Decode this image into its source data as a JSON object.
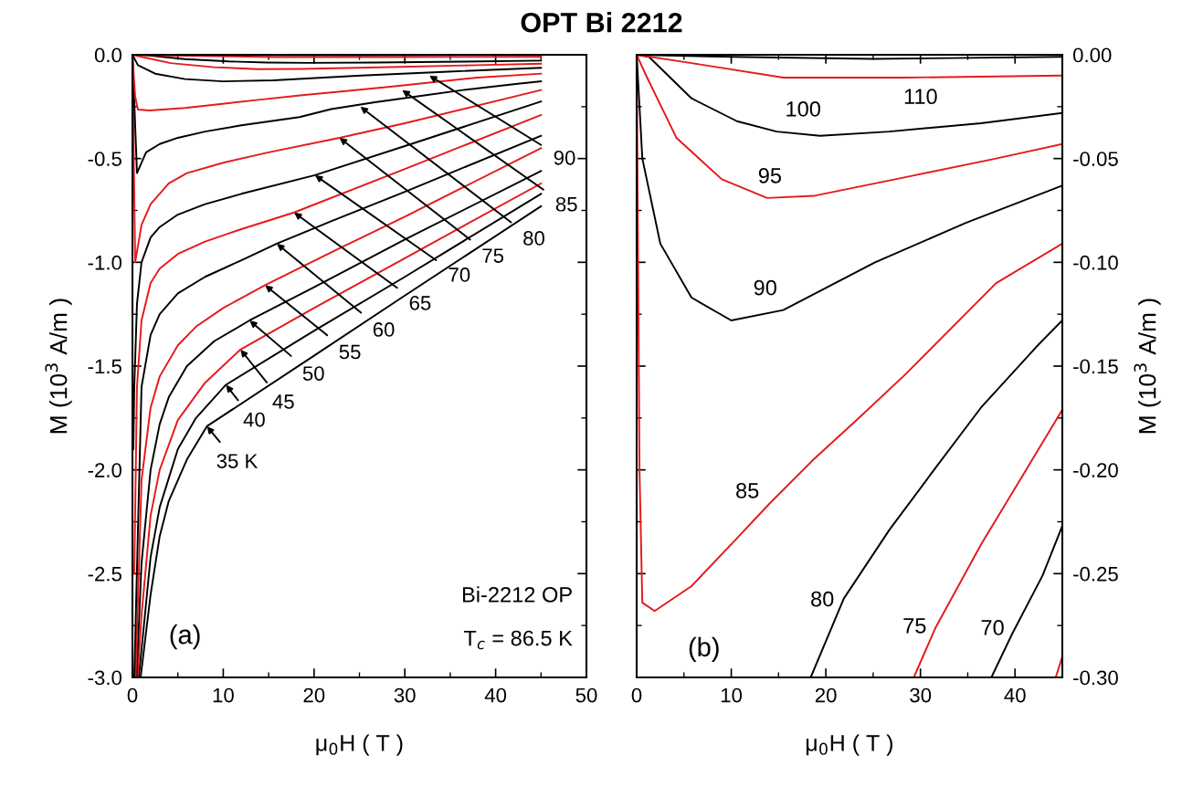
{
  "chart_data": [
    {
      "type": "line",
      "title": "OPT Bi 2212",
      "xlabel": "μ$_{0}$H ( T )",
      "ylabel": "M (10$^{3}$ A/m )",
      "xlim": [
        0,
        50
      ],
      "xticks": [
        0,
        10,
        20,
        30,
        40,
        50
      ],
      "ylim": [
        -3.0,
        0.0
      ],
      "yticks": [
        {
          "value": -3.0,
          "label": "-3.0"
        },
        -2.5,
        {
          "value": -2.0,
          "label": "-2.0"
        },
        -1.5,
        {
          "value": -1.0,
          "label": "-1.0"
        },
        -0.5,
        {
          "value": 0.0,
          "label": "0.0"
        }
      ],
      "series": [
        {
          "color": "#000000",
          "x": [
            0.9,
            2,
            3,
            4,
            6,
            8.2,
            20,
            30,
            45
          ],
          "values": [
            -3.0,
            -2.6,
            -2.32,
            -2.15,
            -1.95,
            -1.79,
            -1.45,
            -1.16,
            -0.73
          ]
        },
        {
          "color": "#000000",
          "x": [
            0.7,
            2,
            3,
            5,
            7,
            10.3,
            20,
            30,
            45
          ],
          "values": [
            -3.0,
            -2.42,
            -2.18,
            -1.9,
            -1.75,
            -1.59,
            -1.33,
            -1.07,
            -0.67
          ]
        },
        {
          "color": "#e41a1c",
          "x": [
            0.55,
            1,
            2,
            3,
            5,
            8,
            11.9,
            20,
            30,
            45
          ],
          "values": [
            -3.0,
            -2.7,
            -2.22,
            -2.0,
            -1.76,
            -1.58,
            -1.42,
            -1.22,
            -0.98,
            -0.62
          ]
        },
        {
          "color": "#000000",
          "x": [
            0.45,
            1,
            2,
            3,
            4,
            6,
            9,
            12.9,
            20,
            30,
            45
          ],
          "values": [
            -3.0,
            -2.45,
            -2.0,
            -1.78,
            -1.65,
            -1.5,
            -1.38,
            -1.28,
            -1.12,
            -0.89,
            -0.56
          ]
        },
        {
          "color": "#e41a1c",
          "x": [
            0.35,
            1,
            2,
            3,
            5,
            7,
            10,
            14.6,
            22,
            30,
            45
          ],
          "values": [
            -3.0,
            -2.05,
            -1.7,
            -1.55,
            -1.4,
            -1.31,
            -1.22,
            -1.11,
            -0.95,
            -0.78,
            -0.45
          ]
        },
        {
          "color": "#000000",
          "x": [
            0.2,
            1,
            2,
            3,
            5,
            8,
            12,
            15.9,
            22,
            30,
            45
          ],
          "values": [
            -3.0,
            -1.6,
            -1.35,
            -1.25,
            -1.15,
            -1.07,
            -0.99,
            -0.91,
            -0.8,
            -0.66,
            -0.39
          ]
        },
        {
          "color": "#e41a1c",
          "x": [
            0.2,
            0.5,
            1,
            2,
            3,
            5,
            8,
            12,
            17.8,
            30,
            45
          ],
          "values": [
            -2.5,
            -1.6,
            -1.28,
            -1.1,
            -1.03,
            -0.96,
            -0.9,
            -0.84,
            -0.76,
            -0.55,
            -0.29
          ]
        },
        {
          "color": "#000000",
          "x": [
            0.1,
            0.2,
            0.5,
            1,
            2,
            3,
            5,
            8,
            12,
            20.1,
            30,
            45
          ],
          "values": [
            -1.9,
            -1.6,
            -1.2,
            -1.0,
            -0.88,
            -0.83,
            -0.77,
            -0.72,
            -0.67,
            -0.58,
            -0.44,
            -0.225
          ]
        },
        {
          "color": "#e41a1c",
          "x": [
            0,
            0.3,
            1,
            2,
            4,
            6,
            10,
            15,
            22.8,
            30,
            45
          ],
          "values": [
            0,
            -1.0,
            -0.82,
            -0.72,
            -0.62,
            -0.57,
            -0.52,
            -0.47,
            -0.4,
            -0.33,
            -0.17
          ]
        },
        {
          "color": "#000000",
          "x": [
            0,
            0.5,
            1.5,
            3,
            5,
            8,
            12,
            18.4,
            21.9,
            26.7,
            31.6,
            36.4,
            42.2,
            45
          ],
          "values": [
            0,
            -0.57,
            -0.47,
            -0.43,
            -0.4,
            -0.37,
            -0.34,
            -0.3,
            -0.262,
            -0.229,
            -0.199,
            -0.17,
            -0.141,
            -0.128
          ]
        },
        {
          "color": "#e41a1c",
          "x": [
            0,
            0.3,
            0.6,
            1.9,
            5.8,
            10.6,
            14.1,
            18.7,
            23.5,
            28.4,
            38,
            45
          ],
          "values": [
            0,
            -0.2,
            -0.264,
            -0.268,
            -0.256,
            -0.233,
            -0.216,
            -0.195,
            -0.175,
            -0.154,
            -0.11,
            -0.091
          ]
        },
        {
          "color": "#000000",
          "x": [
            0,
            0.6,
            2.5,
            5.8,
            10,
            15.5,
            25.2,
            34.8,
            45
          ],
          "values": [
            0,
            -0.05,
            -0.091,
            -0.117,
            -0.128,
            -0.123,
            -0.1,
            -0.081,
            -0.063
          ]
        },
        {
          "color": "#e41a1c",
          "x": [
            0,
            1.0,
            4.2,
            9,
            13.8,
            18.7,
            28.4,
            38,
            45
          ],
          "values": [
            0,
            -0.01,
            -0.04,
            -0.06,
            -0.069,
            -0.068,
            -0.059,
            -0.05,
            -0.043
          ]
        },
        {
          "color": "#000000",
          "x": [
            0,
            1.3,
            5.8,
            10.6,
            14.8,
            19.4,
            26.7,
            36.4,
            45
          ],
          "values": [
            0,
            -0.001,
            -0.021,
            -0.032,
            -0.037,
            -0.039,
            -0.037,
            -0.033,
            -0.028
          ]
        },
        {
          "color": "#e41a1c",
          "x": [
            0,
            5.8,
            15.5,
            28.4,
            45
          ],
          "values": [
            0,
            -0.004,
            -0.011,
            -0.011,
            -0.01
          ]
        },
        {
          "color": "#000000",
          "x": [
            0,
            10,
            25,
            45
          ],
          "values": [
            0,
            -0.001,
            -0.002,
            -0.001
          ]
        }
      ],
      "annotations": [
        {
          "text": "35 K",
          "x": 8.2,
          "y": -1.79
        },
        {
          "text": "40",
          "x": 10.3,
          "y": -1.59
        },
        {
          "text": "45",
          "x": 11.9,
          "y": -1.42
        },
        {
          "text": "50",
          "x": 12.9,
          "y": -1.28
        },
        {
          "text": "55",
          "x": 14.6,
          "y": -1.11
        },
        {
          "text": "60",
          "x": 15.9,
          "y": -0.91
        },
        {
          "text": "65",
          "x": 17.8,
          "y": -0.76
        },
        {
          "text": "70",
          "x": 20.1,
          "y": -0.58
        },
        {
          "text": "75",
          "x": 22.8,
          "y": -0.4
        },
        {
          "text": "80",
          "x": 25.1,
          "y": -0.25
        },
        {
          "text": "85",
          "x": 29.7,
          "y": -0.17
        },
        {
          "text": "90",
          "x": 32.7,
          "y": -0.1
        },
        "(a)",
        "Bi-2212 OP",
        "T$_{c}$ = 86.5 K"
      ]
    },
    {
      "type": "line",
      "xlabel": "μ$_{0}$H ( T )",
      "ylabel": "M (10$^{3}$ A/m )",
      "xlim": [
        0,
        45
      ],
      "xticks": [
        0,
        10,
        20,
        30,
        40
      ],
      "ylim": [
        -0.3,
        0.0
      ],
      "yticks": [
        {
          "value": -0.3,
          "label": "-0.30"
        },
        -0.25,
        {
          "value": -0.2,
          "label": "-0.20"
        },
        -0.15,
        {
          "value": -0.1,
          "label": "-0.10"
        },
        -0.05,
        {
          "value": 0.0,
          "label": "0.00"
        }
      ],
      "series": [
        {
          "color": "#e41a1c",
          "x": [
            44.3,
            45
          ],
          "values": [
            -0.3,
            -0.29
          ]
        },
        {
          "color": "#000000",
          "x": [
            37.5,
            39.7,
            42.9,
            45
          ],
          "values": [
            -0.3,
            -0.279,
            -0.251,
            -0.227
          ]
        },
        {
          "color": "#e41a1c",
          "x": [
            29.3,
            31.6,
            36.4,
            41.3,
            45
          ],
          "values": [
            -0.3,
            -0.276,
            -0.236,
            -0.199,
            -0.171
          ]
        },
        {
          "color": "#000000",
          "x": [
            18.4,
            21.9,
            26.7,
            31.6,
            36.4,
            42.2,
            45
          ],
          "values": [
            -0.3,
            -0.262,
            -0.229,
            -0.199,
            -0.17,
            -0.141,
            -0.128
          ]
        },
        {
          "color": "#e41a1c",
          "x": [
            0,
            0.3,
            0.6,
            1.9,
            5.8,
            10.6,
            14.1,
            18.7,
            23.5,
            28.4,
            38,
            45
          ],
          "values": [
            0,
            -0.2,
            -0.264,
            -0.268,
            -0.256,
            -0.233,
            -0.216,
            -0.195,
            -0.175,
            -0.154,
            -0.11,
            -0.091
          ]
        },
        {
          "color": "#000000",
          "x": [
            0,
            0.6,
            2.5,
            5.8,
            10,
            15.5,
            25.2,
            34.8,
            45
          ],
          "values": [
            0,
            -0.05,
            -0.091,
            -0.117,
            -0.128,
            -0.123,
            -0.1,
            -0.081,
            -0.063
          ]
        },
        {
          "color": "#e41a1c",
          "x": [
            0,
            1.0,
            4.2,
            9,
            13.8,
            18.7,
            28.4,
            38,
            45
          ],
          "values": [
            0,
            -0.01,
            -0.04,
            -0.06,
            -0.069,
            -0.068,
            -0.059,
            -0.05,
            -0.043
          ]
        },
        {
          "color": "#000000",
          "x": [
            0,
            1.3,
            5.8,
            10.6,
            14.8,
            19.4,
            26.7,
            36.4,
            45
          ],
          "values": [
            0,
            -0.001,
            -0.021,
            -0.032,
            -0.037,
            -0.039,
            -0.037,
            -0.033,
            -0.028
          ]
        },
        {
          "color": "#e41a1c",
          "x": [
            0,
            5.8,
            15.5,
            28.4,
            45
          ],
          "values": [
            0,
            -0.004,
            -0.011,
            -0.011,
            -0.01
          ]
        },
        {
          "color": "#000000",
          "x": [
            0,
            10,
            25,
            45
          ],
          "values": [
            0,
            -0.001,
            -0.002,
            -0.001
          ]
        }
      ],
      "annotations": [
        "110",
        "100",
        "95",
        "90",
        "85",
        "80",
        "75",
        "70",
        "(b)"
      ]
    }
  ]
}
